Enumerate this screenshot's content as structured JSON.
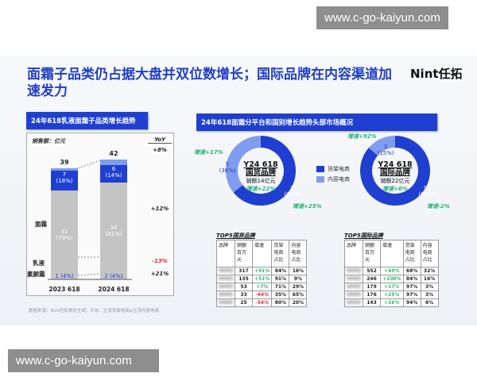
{
  "watermark_top": "www.c-go-kaiyun.com",
  "watermark_bottom": "www.c-go-kaiyun.com",
  "title": "面霜子品类仍占据大盘并双位数增长；国际品牌在内容渠道加速发力",
  "logo": "Nint任拓",
  "left_header": "24年618乳液面霜子品类增长趋势",
  "right_header": "24年618面霜分平台和国别增长趋势头部市场概况",
  "footer": "数据来源：Nint任拓美妆全域；平台：主流货架电商&主流内容电商",
  "colors": {
    "gray": "#c4c4c4",
    "dark": "#1f3fd0",
    "light": "#7f9cf0",
    "green": "#2bb673",
    "red": "#e03030"
  },
  "chart_data": [
    {
      "type": "bar",
      "stacked": true,
      "ylabel": "销售额：亿元",
      "categories": [
        "2023 618",
        "2024 618"
      ],
      "totals": [
        "39",
        "42"
      ],
      "series": [
        {
          "name": "面霜",
          "values": [
            31,
            34
          ],
          "labels": [
            "31",
            "34"
          ],
          "pct": [
            "(79%)",
            "(81%)"
          ],
          "yoy": "+12%"
        },
        {
          "name": "乳液",
          "values": [
            7,
            6
          ],
          "labels": [
            "7",
            "6"
          ],
          "pct": [
            "(18%)",
            "(14%)"
          ],
          "yoy": "-13%"
        },
        {
          "name": "素颜霜",
          "values": [
            1,
            2
          ],
          "labels": [
            "1",
            "2"
          ],
          "pct": [
            "(4%)",
            "(4%)"
          ],
          "yoy": "+21%"
        }
      ],
      "yoy_title": "YoY",
      "total_yoy": "+8%"
    },
    {
      "type": "pie",
      "donut": true,
      "title": "Y24 618",
      "subtitle": "国货品牌",
      "sales": "销额14亿元",
      "growth": "增速+22%",
      "slices": [
        {
          "name": "货架电商",
          "value": 9,
          "pct": "(64%)",
          "label": "9",
          "growth": "增速+25%"
        },
        {
          "name": "内容电商",
          "value": 5,
          "pct": "(36%)",
          "label": "5",
          "growth": "增速+17%"
        }
      ]
    },
    {
      "type": "pie",
      "donut": true,
      "title": "Y24 618",
      "subtitle": "国际品牌",
      "sales": "销额22亿元",
      "growth": "增速+6%",
      "slices": [
        {
          "name": "货架电商",
          "value": 19,
          "pct": "(85%)",
          "label": "19",
          "growth": "增速-2%"
        },
        {
          "name": "内容电商",
          "value": 3,
          "pct": "(15%)",
          "label": "3",
          "growth": "增速+92%"
        }
      ]
    }
  ],
  "legend": [
    "货架电商",
    "内容电商"
  ],
  "tables": [
    {
      "title": "TOP5国货品牌",
      "headers": [
        "品牌",
        "销额百万元",
        "增速",
        "货架电商占比",
        "内容电商占比"
      ],
      "rows": [
        [
          "317",
          "+91%",
          "84%",
          "16%"
        ],
        [
          "135",
          "+51%",
          "91%",
          "9%"
        ],
        [
          "53",
          "+7%",
          "71%",
          "29%"
        ],
        [
          "33",
          "-44%",
          "35%",
          "65%"
        ],
        [
          "25",
          "-54%",
          "80%",
          "20%"
        ]
      ]
    },
    {
      "title": "TOP5国际品牌",
      "headers": [
        "品牌",
        "销额百万元",
        "增速",
        "货架电商占比",
        "内容电商占比"
      ],
      "rows": [
        [
          "552",
          "+49%",
          "68%",
          "32%"
        ],
        [
          "246",
          "+108%",
          "84%",
          "16%"
        ],
        [
          "179",
          "+17%",
          "97%",
          "3%"
        ],
        [
          "176",
          "+25%",
          "97%",
          "3%"
        ],
        [
          "143",
          "+16%",
          "94%",
          "6%"
        ]
      ]
    }
  ]
}
